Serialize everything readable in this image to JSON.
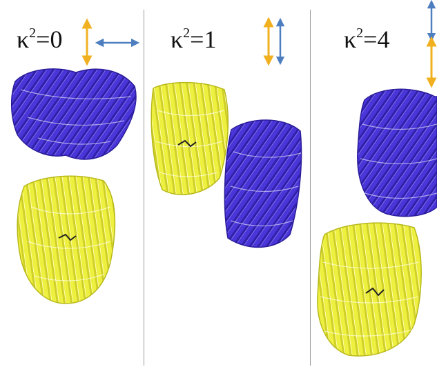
{
  "panels": [
    {
      "label_base": "κ",
      "label_exp": "2",
      "label_value": "=0",
      "orientation": "perpendicular"
    },
    {
      "label_base": "κ",
      "label_exp": "2",
      "label_value": "=1",
      "orientation": "parallel"
    },
    {
      "label_base": "κ",
      "label_exp": "2",
      "label_value": "=4",
      "orientation": "collinear"
    }
  ],
  "colors": {
    "donor_arrow": "#f0b020",
    "acceptor_arrow": "#4d7ec0",
    "donor_protein": "#eef040",
    "acceptor_protein": "#4a35d8",
    "divider": "#9a9a9a"
  },
  "icons": [
    "double-headed-arrow-icon",
    "beta-barrel-protein-icon"
  ]
}
